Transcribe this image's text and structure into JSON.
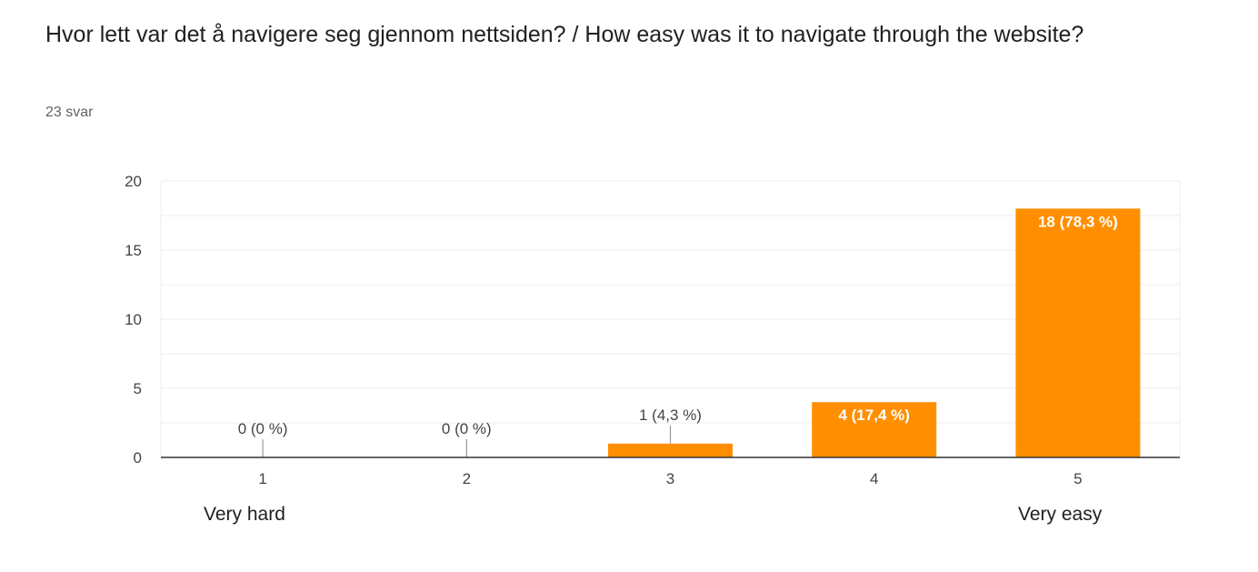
{
  "question": {
    "title": "Hvor lett var det å navigere seg gjennom nettsiden? / How easy was it to navigate through the website?",
    "response_count": "23 svar"
  },
  "scale_labels": {
    "low": "Very hard",
    "high": "Very easy"
  },
  "colors": {
    "bar": "#ff8f00",
    "axis": "#333333",
    "grid": "#ececec",
    "tick_text": "#444444"
  },
  "chart_data": {
    "type": "bar",
    "categories": [
      "1",
      "2",
      "3",
      "4",
      "5"
    ],
    "values": [
      0,
      0,
      1,
      4,
      18
    ],
    "data_labels": [
      "0 (0 %)",
      "0 (0 %)",
      "1 (4,3 %)",
      "4 (17,4 %)",
      "18 (78,3 %)"
    ],
    "yticks": [
      0,
      5,
      10,
      15,
      20
    ],
    "ylim": [
      0,
      20
    ],
    "xlabel": "",
    "ylabel": "",
    "grid": true,
    "legend": "none"
  }
}
